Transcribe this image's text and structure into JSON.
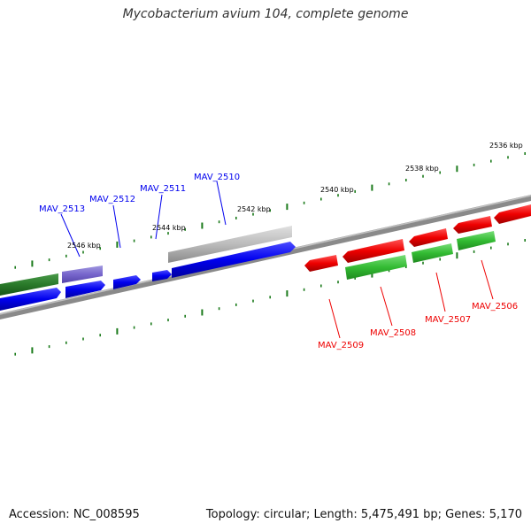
{
  "title": "Mycobacterium avium 104, complete genome",
  "footer": {
    "accession": "Accession: NC_008595",
    "summary": "Topology: circular; Length: 5,475,491 bp; Genes: 5,170"
  },
  "ticks": [
    {
      "id": "tick-2536",
      "label": "2536 kbp"
    },
    {
      "id": "tick-2538",
      "label": "2538 kbp"
    },
    {
      "id": "tick-2540",
      "label": "2540 kbp"
    },
    {
      "id": "tick-2542",
      "label": "2542 kbp"
    },
    {
      "id": "tick-2544",
      "label": "2544 kbp"
    },
    {
      "id": "tick-2546",
      "label": "2546 kbp"
    }
  ],
  "gene_labels_blue": [
    {
      "id": "MAV_2513",
      "label": "MAV_2513"
    },
    {
      "id": "MAV_2512",
      "label": "MAV_2512"
    },
    {
      "id": "MAV_2511",
      "label": "MAV_2511"
    },
    {
      "id": "MAV_2510",
      "label": "MAV_2510"
    }
  ],
  "gene_labels_red": [
    {
      "id": "MAV_2509",
      "label": "MAV_2509"
    },
    {
      "id": "MAV_2508",
      "label": "MAV_2508"
    },
    {
      "id": "MAV_2507",
      "label": "MAV_2507"
    },
    {
      "id": "MAV_2506",
      "label": "MAV_2506"
    }
  ],
  "colors": {
    "backbone": "#808080",
    "tick": "#1a7a1a",
    "blue_gene": "#0000ee",
    "red_gene": "#ee0000",
    "green_gene": "#33bb33",
    "dark_green_gene": "#2a7a2a",
    "gray_gene": "#bbbbbb",
    "purple_gene": "#7766cc"
  }
}
